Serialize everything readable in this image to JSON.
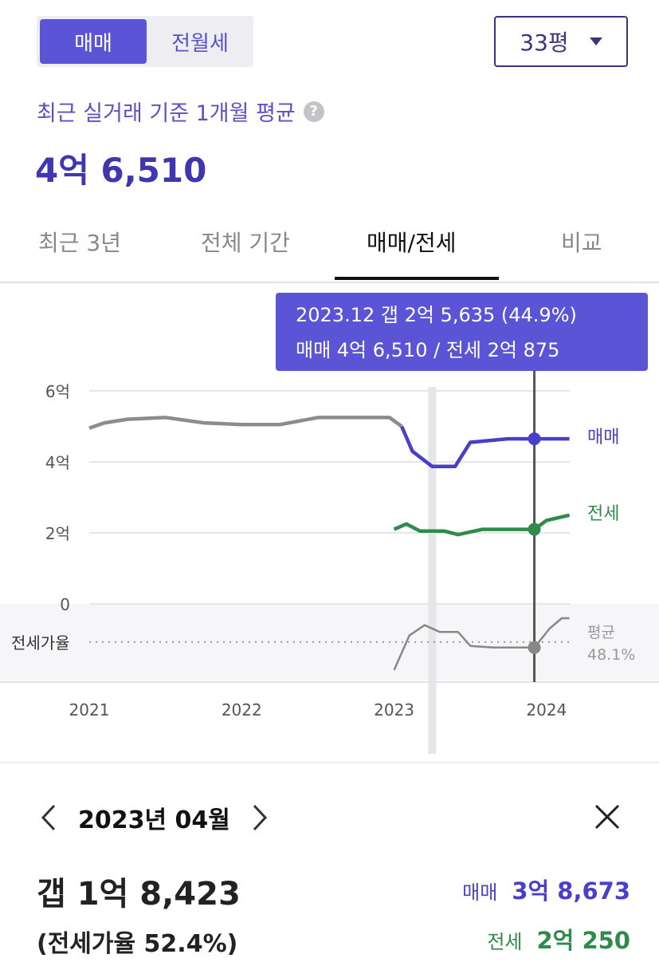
{
  "segment": {
    "options": [
      "매매",
      "전월세"
    ],
    "selected": 0
  },
  "size_select": {
    "value": "33평"
  },
  "summary": {
    "subtitle": "최근 실거래 기준 1개월 평균",
    "price": "4억 6,510"
  },
  "tabs": [
    "최근 3년",
    "전체 기간",
    "매매/전세",
    "비교"
  ],
  "active_tab": 2,
  "tooltip": {
    "line1": "2023.12  갭 2억 5,635 (44.9%)",
    "line2": "매매 4억 6,510 / 전세 2억 875"
  },
  "colors": {
    "sale": "#4a3fc9",
    "jeonse": "#2e8b4a",
    "ratio": "#888888",
    "accent": "#5b54d6"
  },
  "chart_data": {
    "type": "line",
    "x_ticks": [
      "2021",
      "2022",
      "2023",
      "2024"
    ],
    "y_ticks": [
      "6억",
      "4억",
      "2억",
      "0"
    ],
    "ylim": [
      0,
      6
    ],
    "ratio_label": "전세가율",
    "avg_label": "평균",
    "avg_value": "48.1%",
    "series": [
      {
        "name": "매매",
        "points": [
          [
            2021.0,
            4.95
          ],
          [
            2021.1,
            5.1
          ],
          [
            2021.25,
            5.2
          ],
          [
            2021.5,
            5.25
          ],
          [
            2021.75,
            5.1
          ],
          [
            2022.0,
            5.05
          ],
          [
            2022.25,
            5.05
          ],
          [
            2022.5,
            5.25
          ],
          [
            2022.75,
            5.25
          ],
          [
            2022.97,
            5.25
          ],
          [
            2023.05,
            5.0
          ],
          [
            2023.12,
            4.3
          ],
          [
            2023.25,
            3.87
          ],
          [
            2023.4,
            3.87
          ],
          [
            2023.5,
            4.55
          ],
          [
            2023.75,
            4.65
          ],
          [
            2023.92,
            4.65
          ],
          [
            2024.15,
            4.65
          ]
        ]
      },
      {
        "name": "전세",
        "points": [
          [
            2023.0,
            2.1
          ],
          [
            2023.08,
            2.25
          ],
          [
            2023.17,
            2.05
          ],
          [
            2023.33,
            2.05
          ],
          [
            2023.42,
            1.95
          ],
          [
            2023.58,
            2.1
          ],
          [
            2023.75,
            2.1
          ],
          [
            2023.92,
            2.1
          ],
          [
            2024.0,
            2.35
          ],
          [
            2024.15,
            2.5
          ]
        ]
      },
      {
        "name": "전세가율",
        "points": [
          [
            2023.0,
            40
          ],
          [
            2023.1,
            50
          ],
          [
            2023.2,
            53
          ],
          [
            2023.3,
            51
          ],
          [
            2023.42,
            51
          ],
          [
            2023.5,
            47
          ],
          [
            2023.65,
            46.5
          ],
          [
            2023.92,
            46.5
          ],
          [
            2024.02,
            52
          ],
          [
            2024.1,
            55
          ],
          [
            2024.15,
            55
          ]
        ]
      }
    ],
    "marker_x": 2023.92,
    "highlight_x": 2023.25
  },
  "detail": {
    "date": "2023년 04월",
    "gap": "갭 1억 8,423",
    "ratio": "(전세가율 52.4%)",
    "sale_label": "매매",
    "sale_value": "3억 8,673",
    "jeonse_label": "전세",
    "jeonse_value": "2억 250"
  }
}
